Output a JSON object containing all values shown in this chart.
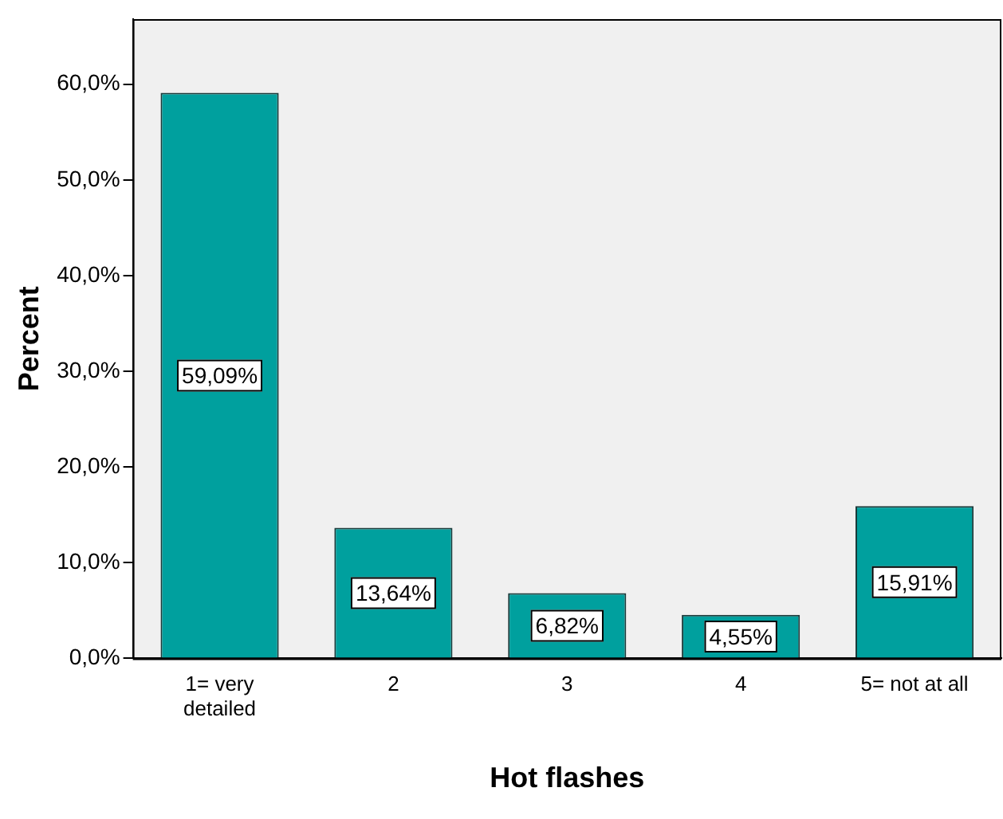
{
  "chart_data": {
    "type": "bar",
    "xlabel": "Hot flashes",
    "ylabel": "Percent",
    "categories": [
      "1= very detailed",
      "2",
      "3",
      "4",
      "5= not at all"
    ],
    "values": [
      59.09,
      13.64,
      6.82,
      4.55,
      15.91
    ],
    "value_labels": [
      "59,09%",
      "13,64%",
      "6,82%",
      "4,55%",
      "15,91%"
    ],
    "color": "#00a09e",
    "ylim": [
      0,
      66.8
    ],
    "yticks": [
      {
        "value": 0,
        "label": "0,0%"
      },
      {
        "value": 10,
        "label": "10,0%"
      },
      {
        "value": 20,
        "label": "20,0%"
      },
      {
        "value": 30,
        "label": "30,0%"
      },
      {
        "value": 40,
        "label": "40,0%"
      },
      {
        "value": 50,
        "label": "50,0%"
      },
      {
        "value": 60,
        "label": "60,0%"
      }
    ],
    "grid": false,
    "legend": false
  }
}
